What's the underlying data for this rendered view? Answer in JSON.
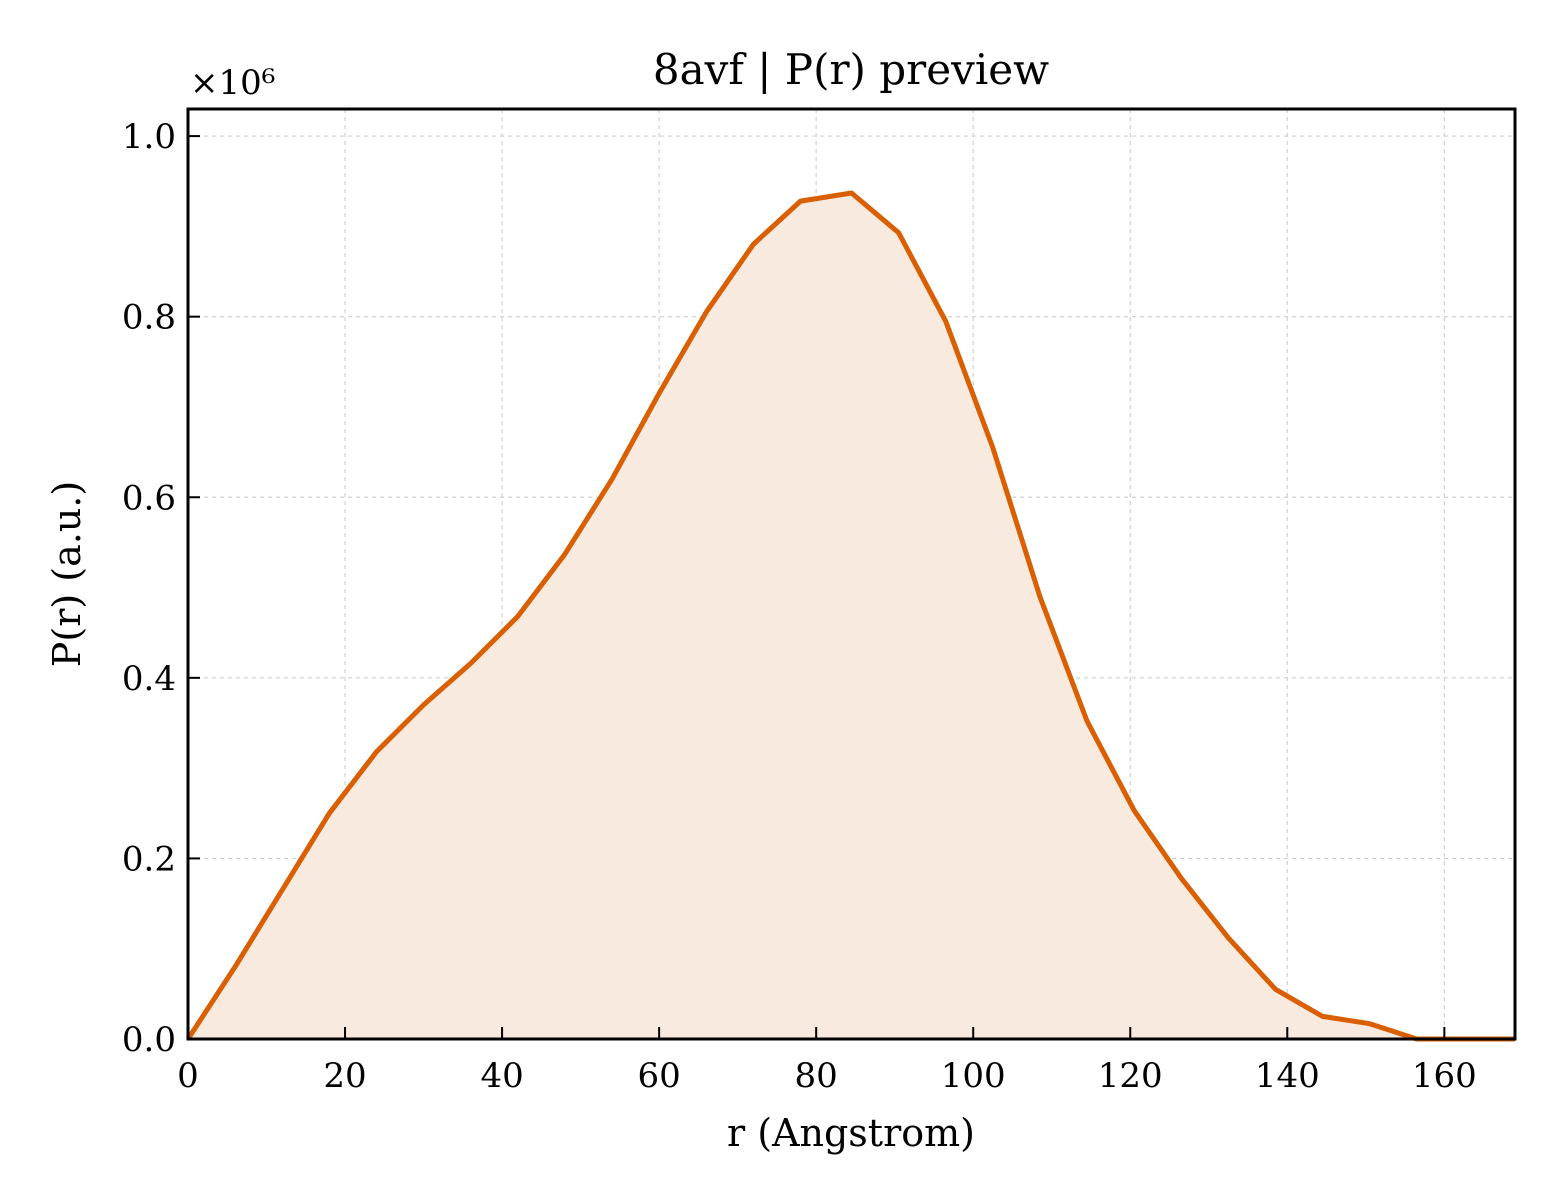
{
  "chart_data": {
    "type": "area",
    "title": "8avf | P(r) preview",
    "xlabel": "r (Angstrom)",
    "ylabel": "P(r) (a.u.)",
    "y_offset_label": "×10⁶",
    "xlim": [
      0,
      169
    ],
    "ylim": [
      0,
      1.03
    ],
    "x_ticks": [
      0,
      20,
      40,
      60,
      80,
      100,
      120,
      140,
      160
    ],
    "x_tick_labels": [
      "0",
      "20",
      "40",
      "60",
      "80",
      "100",
      "120",
      "140",
      "160"
    ],
    "y_ticks": [
      0.0,
      0.2,
      0.4,
      0.6,
      0.8,
      1.0
    ],
    "y_tick_labels": [
      "0.0",
      "0.2",
      "0.4",
      "0.6",
      "0.8",
      "1.0"
    ],
    "grid": true,
    "color": "#d95f02",
    "fill_color": "#f9eadf",
    "series": [
      {
        "x": [
          0,
          6,
          12,
          18,
          24,
          30,
          36,
          42,
          48,
          54,
          60,
          66,
          72,
          78,
          84.5,
          90.5,
          96.5,
          102.5,
          108.5,
          114.5,
          120.5,
          126.5,
          132.5,
          138.5,
          144.5,
          150.5,
          156.5,
          162.5,
          169
        ],
        "y": [
          0.0,
          0.08,
          0.165,
          0.25,
          0.318,
          0.37,
          0.416,
          0.468,
          0.537,
          0.62,
          0.715,
          0.805,
          0.88,
          0.928,
          0.937,
          0.893,
          0.795,
          0.655,
          0.49,
          0.352,
          0.253,
          0.178,
          0.112,
          0.055,
          0.025,
          0.017,
          0.0,
          0.0,
          0.0
        ]
      }
    ]
  }
}
